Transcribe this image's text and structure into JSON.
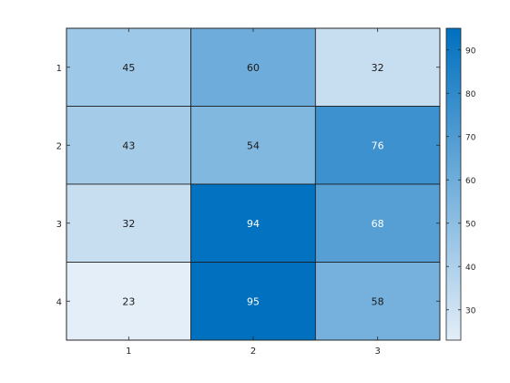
{
  "chart_data": {
    "type": "heatmap",
    "title": "",
    "xlabel": "",
    "ylabel": "",
    "x_categories": [
      "1",
      "2",
      "3"
    ],
    "y_categories": [
      "1",
      "2",
      "3",
      "4"
    ],
    "values": [
      [
        45,
        60,
        32
      ],
      [
        43,
        54,
        76
      ],
      [
        32,
        94,
        68
      ],
      [
        23,
        95,
        58
      ]
    ],
    "colorbar": {
      "range": [
        23,
        95
      ],
      "ticks": [
        30,
        40,
        50,
        60,
        70,
        80,
        90
      ],
      "colormap": [
        "#e3eef8",
        "#0070bf"
      ]
    },
    "grid": false,
    "legend": "colorbar-right"
  }
}
